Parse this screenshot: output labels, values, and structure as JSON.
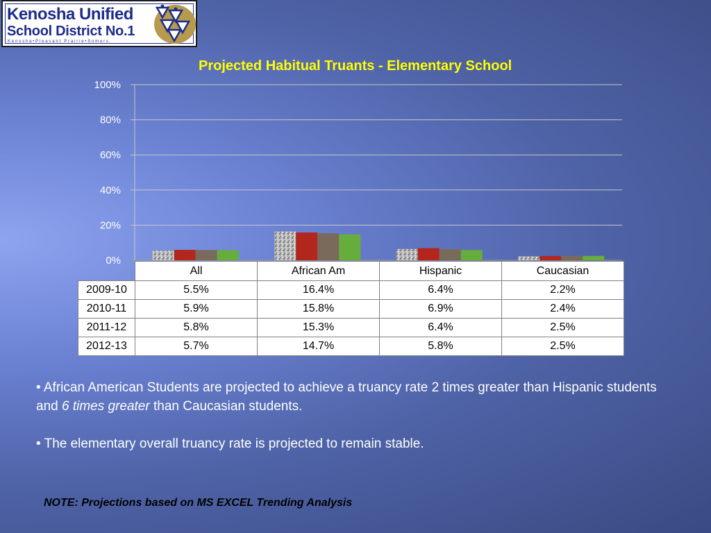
{
  "logo": {
    "line1": "Kenosha Unified",
    "line2": "School District No.1",
    "line3": "Kenosha•Pleasant Prairie•Somers"
  },
  "chart_data": {
    "type": "bar",
    "title": "Projected Habitual Truants - Elementary School",
    "categories": [
      "All",
      "African Am",
      "Hispanic",
      "Caucasian"
    ],
    "series": [
      {
        "name": "2009-10",
        "values": [
          5.5,
          16.4,
          6.4,
          2.2
        ],
        "labels": [
          "5.5%",
          "16.4%",
          "6.4%",
          "2.2%"
        ],
        "color": "#b0b0b0",
        "pattern": "granite"
      },
      {
        "name": "2010-11",
        "values": [
          5.9,
          15.8,
          6.9,
          2.4
        ],
        "labels": [
          "5.9%",
          "15.8%",
          "6.9%",
          "2.4%"
        ],
        "color": "#b3261e"
      },
      {
        "name": "2011-12",
        "values": [
          5.8,
          15.3,
          6.4,
          2.5
        ],
        "labels": [
          "5.8%",
          "15.3%",
          "6.4%",
          "2.5%"
        ],
        "color": "#7a6a5c"
      },
      {
        "name": "2012-13",
        "values": [
          5.7,
          14.7,
          5.8,
          2.5
        ],
        "labels": [
          "5.7%",
          "14.7%",
          "5.8%",
          "2.5%"
        ],
        "color": "#66ad3c"
      }
    ],
    "ylim": [
      0,
      100
    ],
    "yticks": [
      "0%",
      "20%",
      "40%",
      "60%",
      "80%",
      "100%"
    ],
    "grid": true,
    "legend": "data-table below chart"
  },
  "bullets": {
    "b1_pre": "• African American Students are projected to achieve a truancy rate 2 times greater than Hispanic students and ",
    "b1_em": "6 times greater",
    "b1_post": " than Caucasian students.",
    "b2": "• The elementary overall truancy rate is projected to remain stable."
  },
  "note": "NOTE: Projections based on MS EXCEL Trending Analysis"
}
